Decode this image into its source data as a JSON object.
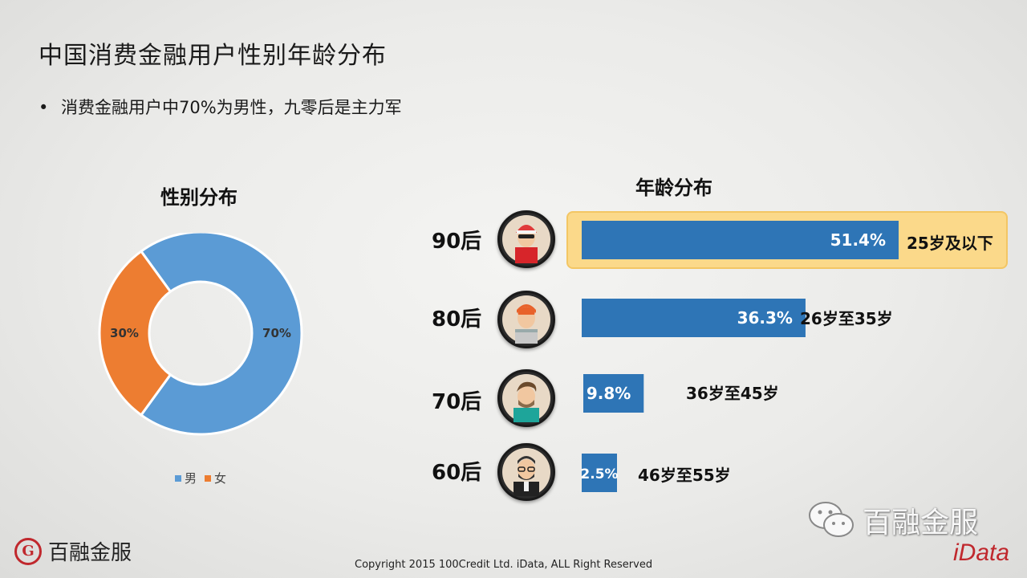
{
  "page": {
    "title": "中国消费金融用户性别年龄分布",
    "bullet": "消费金融用户中70%为男性，九零后是主力军"
  },
  "colors": {
    "male": "#5b9bd5",
    "female": "#ed7d31",
    "bar": "#2e75b6",
    "highlight": "#fbd98a"
  },
  "chart_data": [
    {
      "type": "pie",
      "title": "性别分布",
      "labels": [
        "男",
        "女"
      ],
      "values": [
        70,
        30
      ],
      "value_labels": [
        "70%",
        "30%"
      ],
      "donut": true,
      "legend": "bottom"
    },
    {
      "type": "bar",
      "orientation": "horizontal",
      "title": "年龄分布",
      "categories": [
        "90后",
        "80后",
        "70后",
        "60后"
      ],
      "values": [
        51.4,
        36.3,
        9.8,
        2.5
      ],
      "value_labels": [
        "51.4%",
        "36.3%",
        "9.8%",
        "2.5%"
      ],
      "range_labels": [
        "25岁及以下",
        "26岁至35岁",
        "36岁至45岁",
        "46岁至55岁"
      ],
      "highlighted_category": "90后"
    }
  ],
  "footer": {
    "logo_text": "百融金服",
    "copyright": "Copyright 2015 100Credit Ltd. iData, ALL Right Reserved",
    "watermark_text": "百融金服",
    "brand": "iData"
  }
}
